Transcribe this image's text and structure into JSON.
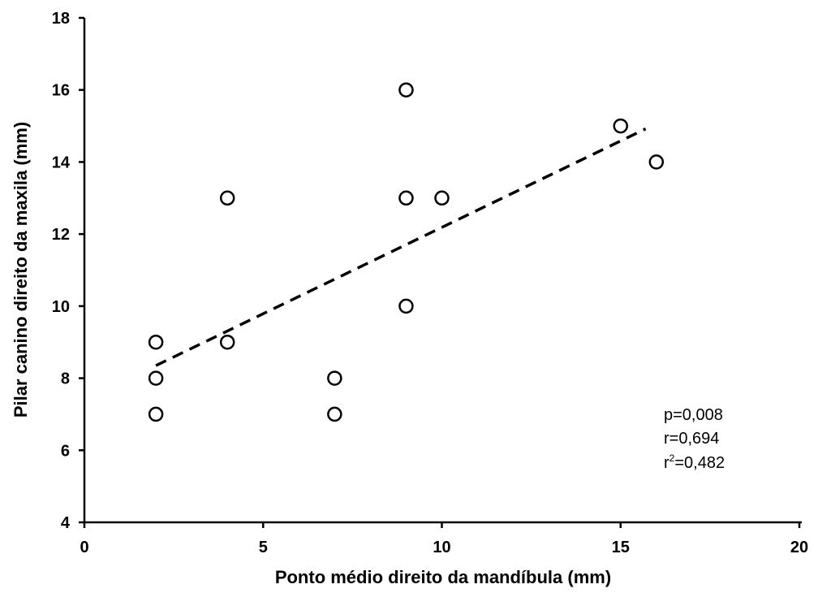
{
  "chart_data": {
    "type": "scatter",
    "xlabel": "Ponto médio direito da mandíbula (mm)",
    "ylabel": "Pilar canino direito da maxila (mm)",
    "xlim": [
      0,
      20
    ],
    "ylim": [
      4,
      18
    ],
    "x_ticks": [
      "0",
      "5",
      "10",
      "15",
      "20"
    ],
    "y_ticks": [
      "4",
      "6",
      "8",
      "10",
      "12",
      "14",
      "16",
      "18"
    ],
    "grid": false,
    "points": [
      {
        "x": 2,
        "y": 7
      },
      {
        "x": 2,
        "y": 8
      },
      {
        "x": 2,
        "y": 9
      },
      {
        "x": 4,
        "y": 9
      },
      {
        "x": 4,
        "y": 13
      },
      {
        "x": 7,
        "y": 7
      },
      {
        "x": 7,
        "y": 8
      },
      {
        "x": 9,
        "y": 10
      },
      {
        "x": 9,
        "y": 13
      },
      {
        "x": 9,
        "y": 16
      },
      {
        "x": 10,
        "y": 13
      },
      {
        "x": 15,
        "y": 15
      },
      {
        "x": 16,
        "y": 14
      }
    ],
    "trendline": {
      "style": "dashed",
      "points": [
        {
          "x": 2,
          "y": 8.35
        },
        {
          "x": 15.7,
          "y": 14.92
        }
      ]
    },
    "annotation": {
      "p": "p=0,008",
      "r": "r=0,694",
      "r2_prefix": "r",
      "r2_sup": "2",
      "r2_suffix": "=0,482"
    }
  }
}
